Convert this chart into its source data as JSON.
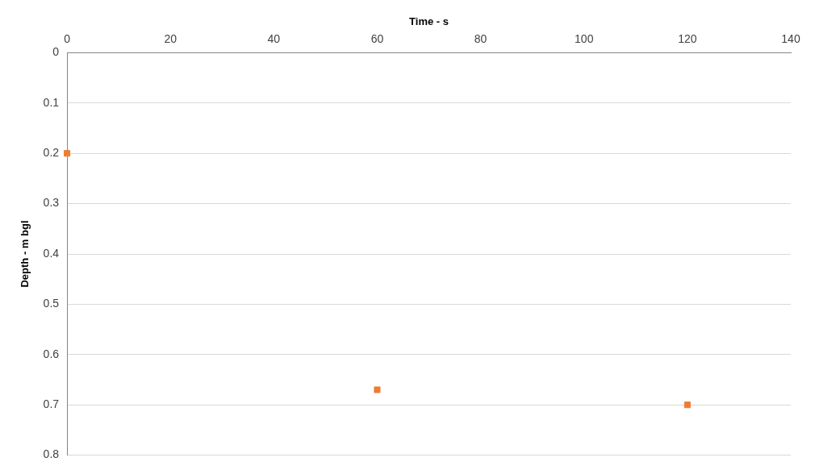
{
  "chart_data": {
    "type": "scatter",
    "xlabel": "Time - s",
    "ylabel": "Depth - m bgl",
    "x": [
      0,
      60,
      120
    ],
    "series": [
      {
        "color": "#ed7d31",
        "values": [
          0.2,
          0.67,
          0.7
        ]
      }
    ],
    "xlim": [
      0,
      140
    ],
    "xticks": [
      0,
      20,
      40,
      60,
      80,
      100,
      120,
      140
    ],
    "ylim": [
      0.8,
      0
    ],
    "yticks": [
      0,
      0.1,
      0.2,
      0.3,
      0.4,
      0.5,
      0.6,
      0.7,
      0.8
    ],
    "grid": "y",
    "legend": false,
    "marker": "square"
  }
}
